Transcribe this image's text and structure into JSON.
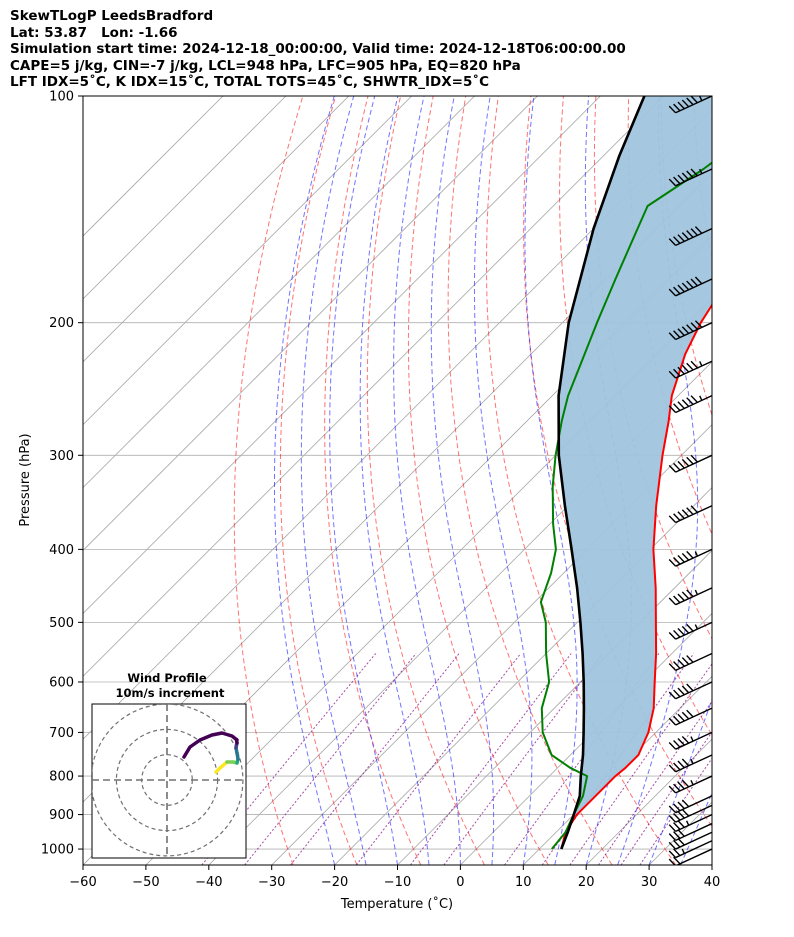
{
  "header": {
    "line1": "SkewTLogP LeedsBradford",
    "line2": "Lat: 53.87   Lon: -1.66",
    "line3": "Simulation start time: 2024-12-18_00:00:00, Valid time: 2024-12-18T06:00:00.00",
    "line4": "CAPE=5 j/kg, CIN=-7 j/kg, LCL=948 hPa, LFC=905 hPa, EQ=820 hPa",
    "line5": "LFT IDX=5˚C, K IDX=15˚C, TOTAL TOTS=45˚C, SHWTR_IDX=5˚C"
  },
  "chart_data": {
    "type": "line",
    "subtype": "skew-t log-p",
    "xlabel": "Temperature (˚C)",
    "ylabel": "Pressure (hPa)",
    "xlim": [
      -60,
      40
    ],
    "ylim": [
      1050,
      100
    ],
    "yscale": "log",
    "grid": true,
    "x_ticks": [
      "−60",
      "−50",
      "−40",
      "−30",
      "−20",
      "−10",
      "0",
      "10",
      "20",
      "30",
      "40"
    ],
    "x_tick_values": [
      -60,
      -50,
      -40,
      -30,
      -20,
      -10,
      0,
      10,
      20,
      30,
      40
    ],
    "y_ticks": [
      "100",
      "200",
      "300",
      "400",
      "500",
      "600",
      "700",
      "800",
      "900",
      "1000"
    ],
    "y_tick_values": [
      100,
      200,
      300,
      400,
      500,
      600,
      700,
      800,
      900,
      1000
    ],
    "series": [
      {
        "role": "temperature",
        "color": "#ff0000",
        "points": [
          [
            1000,
            13.5
          ],
          [
            950,
            11.5
          ],
          [
            900,
            10.5
          ],
          [
            850,
            10.5
          ],
          [
            800,
            10.5
          ],
          [
            780,
            10.8
          ],
          [
            750,
            10.8
          ],
          [
            700,
            8.8
          ],
          [
            650,
            5.8
          ],
          [
            600,
            1.8
          ],
          [
            550,
            -2.5
          ],
          [
            500,
            -7.5
          ],
          [
            450,
            -13.0
          ],
          [
            400,
            -19.5
          ],
          [
            350,
            -26.0
          ],
          [
            300,
            -33.0
          ],
          [
            270,
            -37.5
          ],
          [
            250,
            -41.0
          ],
          [
            220,
            -45.5
          ],
          [
            200,
            -48.0
          ],
          [
            180,
            -50.0
          ],
          [
            150,
            -53.5
          ],
          [
            130,
            -56.5
          ],
          [
            115,
            -59.5
          ],
          [
            100,
            -62.5
          ]
        ]
      },
      {
        "role": "dewpoint",
        "color": "#008000",
        "points": [
          [
            1000,
            12.0
          ],
          [
            950,
            11.5
          ],
          [
            900,
            10.0
          ],
          [
            850,
            8.5
          ],
          [
            800,
            6.0
          ],
          [
            780,
            2.0
          ],
          [
            750,
            -3.0
          ],
          [
            700,
            -8.0
          ],
          [
            650,
            -12.0
          ],
          [
            600,
            -15.0
          ],
          [
            550,
            -20.0
          ],
          [
            500,
            -25.0
          ],
          [
            470,
            -29.0
          ],
          [
            430,
            -32.0
          ],
          [
            400,
            -35.0
          ],
          [
            370,
            -39.5
          ],
          [
            330,
            -45.5
          ],
          [
            300,
            -50.0
          ],
          [
            270,
            -54.5
          ],
          [
            250,
            -57.5
          ],
          [
            220,
            -61.5
          ],
          [
            200,
            -64.5
          ],
          [
            175,
            -68.5
          ],
          [
            150,
            -73.0
          ],
          [
            140,
            -75.0
          ],
          [
            125,
            -72.0
          ],
          [
            115,
            -70.5
          ],
          [
            100,
            -68.5
          ]
        ]
      },
      {
        "role": "parcel",
        "color": "#000000",
        "points": [
          [
            1000,
            13.5
          ],
          [
            948,
            11.8
          ],
          [
            905,
            10.2
          ],
          [
            850,
            8.0
          ],
          [
            800,
            5.0
          ],
          [
            750,
            2.0
          ],
          [
            700,
            -1.5
          ],
          [
            650,
            -5.3
          ],
          [
            600,
            -9.5
          ],
          [
            550,
            -14.2
          ],
          [
            500,
            -19.5
          ],
          [
            450,
            -25.5
          ],
          [
            400,
            -32.5
          ],
          [
            350,
            -40.5
          ],
          [
            300,
            -49.5
          ],
          [
            250,
            -59.0
          ],
          [
            200,
            -69.0
          ],
          [
            150,
            -80.0
          ],
          [
            120,
            -87.5
          ],
          [
            100,
            -93.0
          ]
        ]
      }
    ],
    "shaded_region": {
      "color": "#a0c4de",
      "between": [
        "temperature",
        "parcel"
      ]
    },
    "dry_adiabat_color": "#ff0000",
    "moist_adiabat_color": "#0000ff",
    "mixing_ratio_color": "#800080",
    "isotherm_color": "#808080",
    "wind_barbs": {
      "color": "#000000",
      "pressures": [
        1000,
        975,
        950,
        925,
        900,
        875,
        850,
        800,
        750,
        700,
        650,
        600,
        550,
        500,
        450,
        400,
        350,
        300,
        250,
        225,
        200,
        175,
        150,
        125,
        100
      ],
      "speed_kt": [
        20,
        25,
        30,
        30,
        35,
        40,
        40,
        45,
        45,
        45,
        50,
        50,
        50,
        55,
        55,
        55,
        60,
        60,
        65,
        65,
        70,
        70,
        70,
        65,
        65
      ],
      "direction_deg": [
        240,
        240,
        240,
        240,
        240,
        245,
        245,
        245,
        245,
        245,
        245,
        245,
        245,
        245,
        245,
        245,
        245,
        245,
        245,
        245,
        245,
        245,
        245,
        245,
        245
      ]
    },
    "inset": {
      "title_line1": "Wind Profile",
      "title_line2": "10m/s increment",
      "ring_speeds_ms": [
        10,
        20,
        30
      ],
      "hodograph_uv_ms": [
        [
          25.5,
          24.5
        ],
        [
          26.0,
          21.0
        ],
        [
          25.5,
          19.0
        ],
        [
          25.0,
          16.0
        ],
        [
          26.0,
          11.0
        ],
        [
          27.0,
          5.0
        ],
        [
          26.0,
          1.0
        ],
        [
          22.0,
          2.0
        ],
        [
          16.0,
          2.0
        ],
        [
          9.0,
          -4.0
        ],
        [
          5.0,
          -8.0
        ]
      ],
      "hodograph_colors": [
        "#440154",
        "#414487",
        "#2a788e",
        "#22a884",
        "#7ad151",
        "#fde725"
      ]
    }
  }
}
